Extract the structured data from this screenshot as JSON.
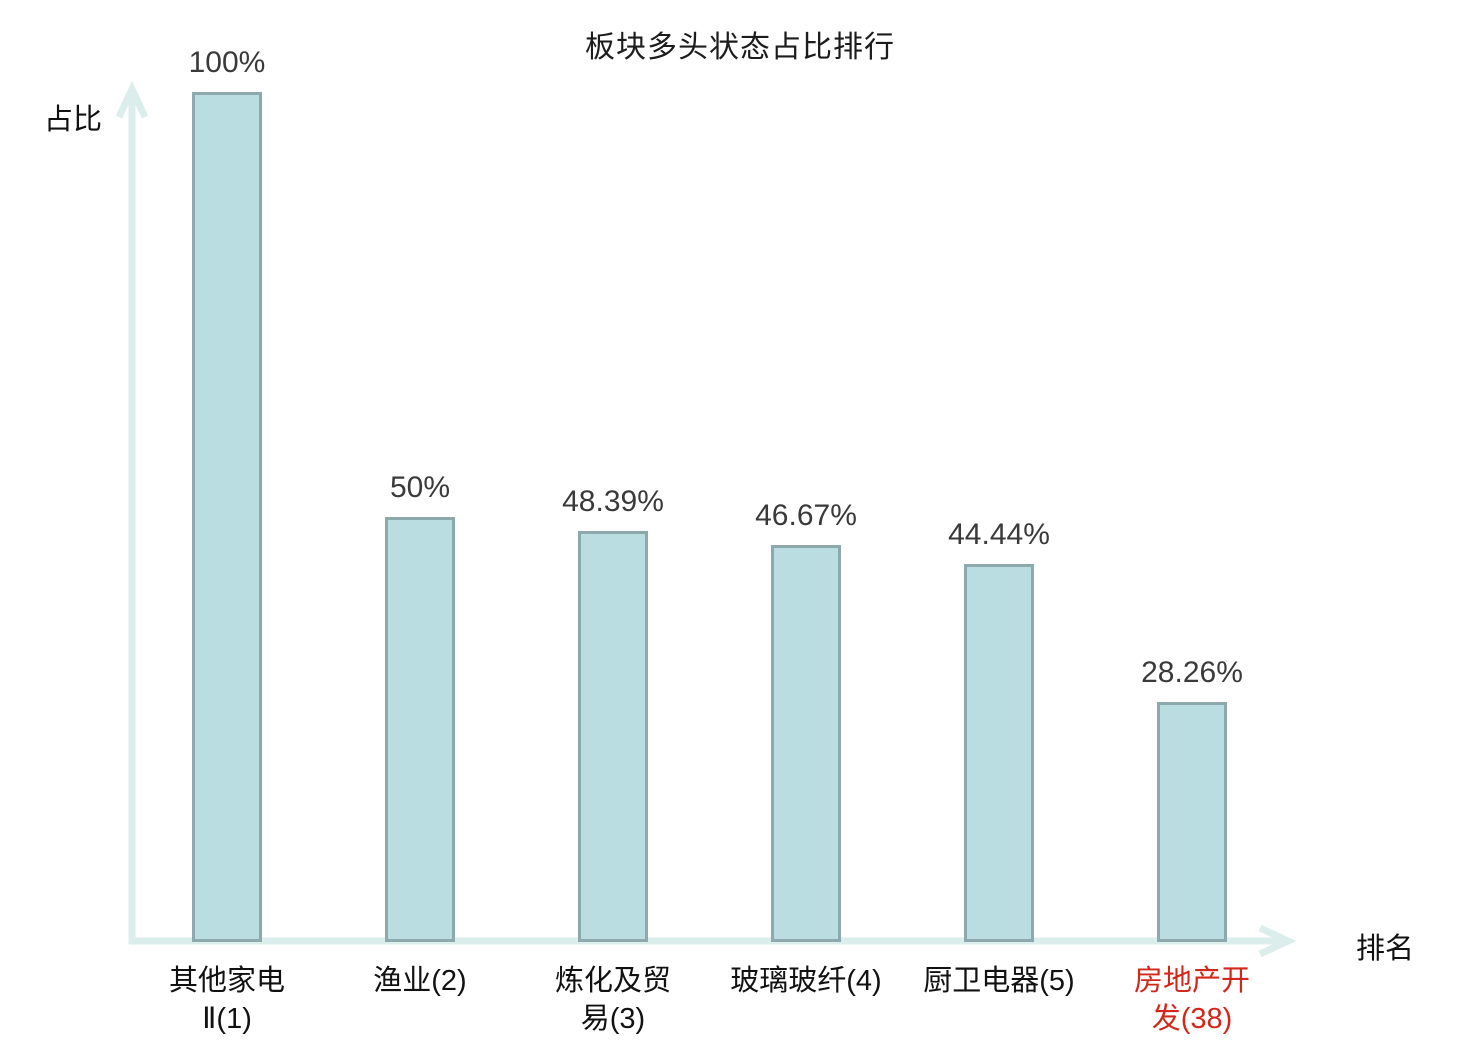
{
  "chart": {
    "title": "板块多头状态占比排行",
    "y_axis_label": "占比",
    "x_axis_label": "排名",
    "colors": {
      "bar_fill": "#badde2",
      "bar_border": "#8da9ad",
      "axis": "#dbeeeb",
      "value_label": "#3a3a3a",
      "category_label": "#111111",
      "highlight_category": "#d2281c"
    }
  },
  "chart_data": {
    "type": "bar",
    "title": "板块多头状态占比排行",
    "xlabel": "排名",
    "ylabel": "占比",
    "ylim": [
      0,
      100
    ],
    "grid": false,
    "legend": false,
    "categories": [
      "其他家电Ⅱ(1)",
      "渔业(2)",
      "炼化及贸易(3)",
      "玻璃玻纤(4)",
      "厨卫电器(5)",
      "房地产开发(38)"
    ],
    "values": [
      100,
      50,
      48.39,
      46.67,
      44.44,
      28.26
    ],
    "bars": [
      {
        "category_display": "其他家电\nⅡ(1)",
        "value": 100,
        "value_label": "100%",
        "highlighted": false
      },
      {
        "category_display": "渔业(2)",
        "value": 50,
        "value_label": "50%",
        "highlighted": false
      },
      {
        "category_display": "炼化及贸\n易(3)",
        "value": 48.39,
        "value_label": "48.39%",
        "highlighted": false
      },
      {
        "category_display": "玻璃玻纤(4)",
        "value": 46.67,
        "value_label": "46.67%",
        "highlighted": false
      },
      {
        "category_display": "厨卫电器(5)",
        "value": 44.44,
        "value_label": "44.44%",
        "highlighted": false
      },
      {
        "category_display": "房地产开\n发(38)",
        "value": 28.26,
        "value_label": "28.26%",
        "highlighted": true
      }
    ]
  }
}
